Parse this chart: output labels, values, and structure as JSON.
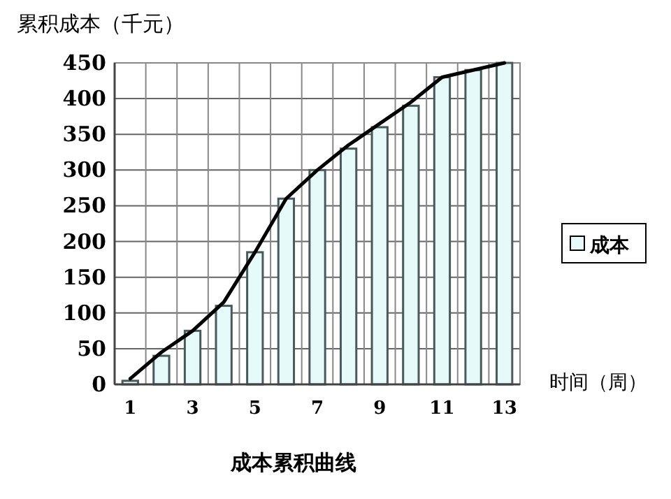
{
  "chart_data": {
    "type": "bar",
    "title": "成本累积曲线",
    "ylabel": "累积成本（千元）",
    "xlabel": "时间（周）",
    "categories": [
      "1",
      null,
      "3",
      null,
      "5",
      null,
      "7",
      null,
      "9",
      null,
      "11",
      null,
      "13"
    ],
    "series": [
      {
        "name": "成本",
        "color": "#e6fafa",
        "values": [
          5,
          40,
          75,
          110,
          185,
          260,
          300,
          330,
          360,
          390,
          430,
          440,
          450
        ]
      },
      {
        "type": "line",
        "color": "#000000",
        "values": [
          8,
          45,
          75,
          115,
          185,
          260,
          300,
          335,
          365,
          395,
          430,
          440,
          450
        ]
      }
    ],
    "ylim": [
      0,
      450
    ],
    "yticks": [
      0,
      50,
      100,
      150,
      200,
      250,
      300,
      350,
      400,
      450
    ],
    "grid": true,
    "legend": "right"
  }
}
